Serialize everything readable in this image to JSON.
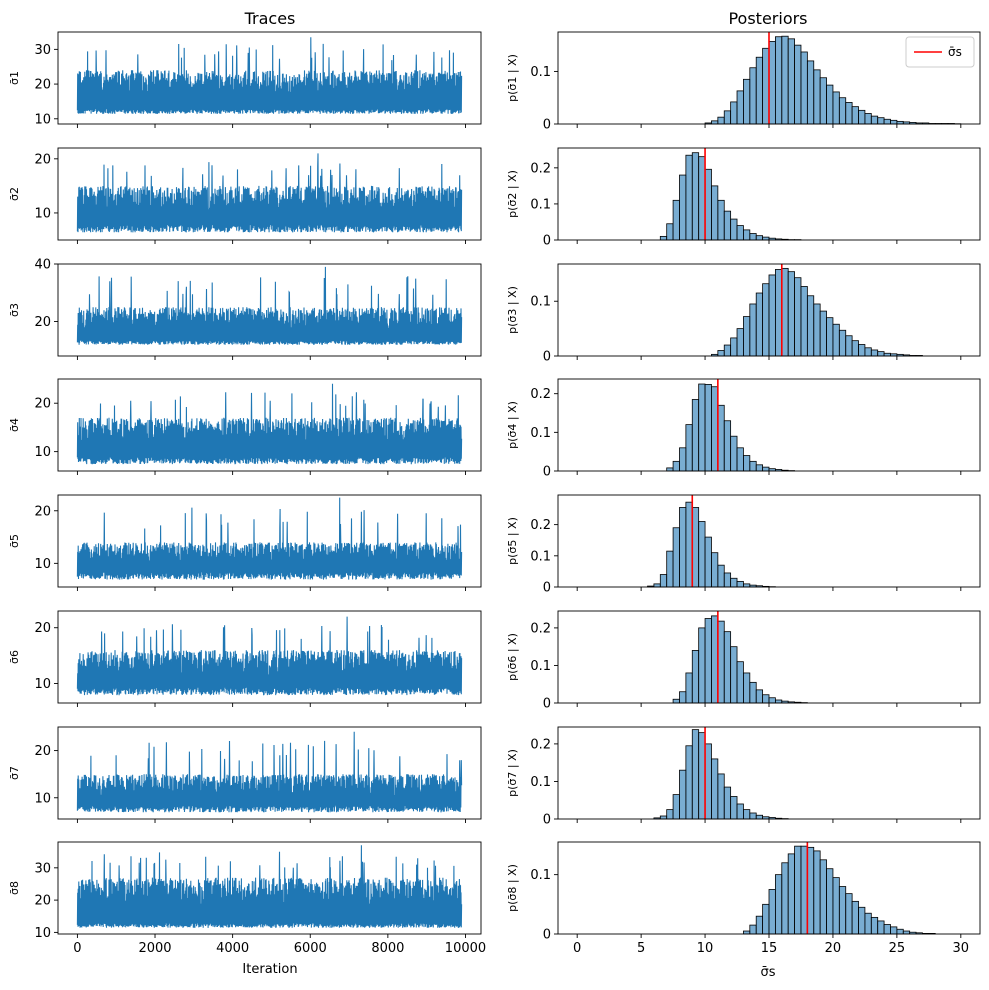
{
  "colors": {
    "trace": "#1f77b4",
    "bar_fill": "#1f77b4",
    "bar_alpha": 0.6,
    "bar_edge": "#000000",
    "vline": "#ff0000"
  },
  "chart_data": [
    {
      "type": "line",
      "title": "Traces",
      "xlabel": "Iteration",
      "xlim": [
        -500,
        10400
      ],
      "xticks": [
        0,
        2000,
        4000,
        6000,
        8000,
        10000
      ],
      "iterations": 9900,
      "panels": [
        {
          "ylabel": "σ̄1",
          "ylim": [
            8.5,
            35
          ],
          "yticks": [
            10,
            20,
            30
          ],
          "base": 12,
          "typ_top": 24,
          "peak": 33.5
        },
        {
          "ylabel": "σ̄2",
          "ylim": [
            5,
            22
          ],
          "yticks": [
            10,
            20
          ],
          "base": 7,
          "typ_top": 15,
          "peak": 21
        },
        {
          "ylabel": "σ̄3",
          "ylim": [
            8,
            40
          ],
          "yticks": [
            20,
            40
          ],
          "base": 12.5,
          "typ_top": 25,
          "peak": 39
        },
        {
          "ylabel": "σ̄4",
          "ylim": [
            6,
            25
          ],
          "yticks": [
            10,
            20
          ],
          "base": 8,
          "typ_top": 17,
          "peak": 24
        },
        {
          "ylabel": "σ̄5",
          "ylim": [
            5.5,
            23
          ],
          "yticks": [
            10,
            20
          ],
          "base": 7.5,
          "typ_top": 14,
          "peak": 22.5
        },
        {
          "ylabel": "σ̄6",
          "ylim": [
            6.5,
            23
          ],
          "yticks": [
            10,
            20
          ],
          "base": 8.5,
          "typ_top": 16,
          "peak": 22
        },
        {
          "ylabel": "σ̄7",
          "ylim": [
            5.5,
            25
          ],
          "yticks": [
            10,
            20
          ],
          "base": 7.5,
          "typ_top": 15,
          "peak": 24
        },
        {
          "ylabel": "σ̄8",
          "ylim": [
            9.5,
            38
          ],
          "yticks": [
            10,
            20,
            30
          ],
          "base": 12,
          "typ_top": 27,
          "peak": 37
        }
      ]
    },
    {
      "type": "bar",
      "title": "Posteriors",
      "xlabel": "σ̄s",
      "xlim": [
        -1.5,
        31.5
      ],
      "xticks": [
        0,
        5,
        10,
        15,
        20,
        25,
        30
      ],
      "bin_width": 0.5,
      "legend": {
        "label": "σ̄s",
        "placement": "top-right",
        "panel": 0
      },
      "panels": [
        {
          "ylabel": "p(σ̄1 | X)",
          "ylim": [
            0,
            0.175
          ],
          "yticks": [
            0.0,
            0.1
          ],
          "true_value": 15.0,
          "start": 10.0,
          "heights": [
            0.002,
            0.006,
            0.013,
            0.025,
            0.042,
            0.063,
            0.085,
            0.107,
            0.127,
            0.144,
            0.157,
            0.166,
            0.167,
            0.162,
            0.15,
            0.137,
            0.12,
            0.103,
            0.088,
            0.074,
            0.061,
            0.05,
            0.041,
            0.033,
            0.026,
            0.02,
            0.015,
            0.012,
            0.009,
            0.007,
            0.005,
            0.004,
            0.003,
            0.002,
            0.002,
            0.001,
            0.001,
            0.001,
            0.001,
            0.0005
          ]
        },
        {
          "ylabel": "p(σ̄2 | X)",
          "ylim": [
            0,
            0.255
          ],
          "yticks": [
            0.0,
            0.1,
            0.2
          ],
          "true_value": 10.0,
          "start": 6.5,
          "heights": [
            0.01,
            0.045,
            0.11,
            0.18,
            0.235,
            0.242,
            0.231,
            0.196,
            0.15,
            0.11,
            0.08,
            0.058,
            0.04,
            0.028,
            0.018,
            0.012,
            0.008,
            0.005,
            0.003,
            0.002,
            0.001,
            0.001
          ]
        },
        {
          "ylabel": "p(σ̄3 | X)",
          "ylim": [
            0,
            0.168
          ],
          "yticks": [
            0.0,
            0.1
          ],
          "true_value": 16.0,
          "start": 10.5,
          "heights": [
            0.003,
            0.01,
            0.02,
            0.033,
            0.05,
            0.072,
            0.095,
            0.115,
            0.132,
            0.148,
            0.158,
            0.16,
            0.154,
            0.143,
            0.127,
            0.11,
            0.095,
            0.082,
            0.07,
            0.058,
            0.047,
            0.037,
            0.028,
            0.021,
            0.015,
            0.011,
            0.008,
            0.005,
            0.004,
            0.003,
            0.002,
            0.001,
            0.001
          ]
        },
        {
          "ylabel": "p(σ̄4 | X)",
          "ylim": [
            0,
            0.238
          ],
          "yticks": [
            0.0,
            0.1,
            0.2
          ],
          "true_value": 11.0,
          "start": 7.0,
          "heights": [
            0.008,
            0.025,
            0.06,
            0.12,
            0.185,
            0.225,
            0.224,
            0.218,
            0.17,
            0.13,
            0.09,
            0.06,
            0.04,
            0.025,
            0.016,
            0.01,
            0.006,
            0.004,
            0.002,
            0.001
          ]
        },
        {
          "ylabel": "p(σ̄5 | X)",
          "ylim": [
            0,
            0.295
          ],
          "yticks": [
            0.0,
            0.1,
            0.2
          ],
          "true_value": 9.0,
          "start": 5.5,
          "heights": [
            0.003,
            0.01,
            0.04,
            0.115,
            0.19,
            0.255,
            0.272,
            0.255,
            0.21,
            0.16,
            0.11,
            0.07,
            0.045,
            0.028,
            0.018,
            0.01,
            0.006,
            0.004,
            0.002,
            0.001
          ]
        },
        {
          "ylabel": "p(σ̄6 | X)",
          "ylim": [
            0,
            0.245
          ],
          "yticks": [
            0.0,
            0.1,
            0.2
          ],
          "true_value": 11.0,
          "start": 7.5,
          "heights": [
            0.01,
            0.03,
            0.08,
            0.14,
            0.2,
            0.225,
            0.232,
            0.218,
            0.19,
            0.15,
            0.11,
            0.08,
            0.055,
            0.035,
            0.022,
            0.014,
            0.008,
            0.005,
            0.003,
            0.002,
            0.001
          ]
        },
        {
          "ylabel": "p(σ̄7 | X)",
          "ylim": [
            0,
            0.245
          ],
          "yticks": [
            0.0,
            0.1,
            0.2
          ],
          "true_value": 10.0,
          "start": 6.0,
          "heights": [
            0.003,
            0.008,
            0.025,
            0.065,
            0.13,
            0.195,
            0.238,
            0.23,
            0.2,
            0.16,
            0.12,
            0.085,
            0.06,
            0.04,
            0.025,
            0.016,
            0.01,
            0.006,
            0.004,
            0.002,
            0.001
          ]
        },
        {
          "ylabel": "p(σ̄8 | X)",
          "ylim": [
            0,
            0.155
          ],
          "yticks": [
            0.0,
            0.1
          ],
          "true_value": 18.0,
          "start": 13.0,
          "heights": [
            0.005,
            0.015,
            0.03,
            0.05,
            0.075,
            0.1,
            0.12,
            0.135,
            0.148,
            0.148,
            0.146,
            0.14,
            0.125,
            0.11,
            0.095,
            0.08,
            0.068,
            0.055,
            0.045,
            0.035,
            0.028,
            0.022,
            0.016,
            0.012,
            0.008,
            0.005,
            0.003,
            0.002,
            0.001,
            0.001
          ]
        }
      ]
    }
  ]
}
